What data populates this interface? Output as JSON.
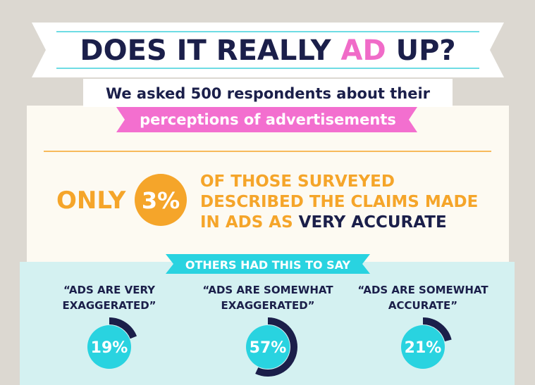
{
  "header": {
    "title_parts": [
      "DOES IT REALLY ",
      "AD",
      " UP?"
    ],
    "subtitle_line1": "We asked 500 respondents about their",
    "subtitle_line2": "perceptions of advertisements"
  },
  "highlight": {
    "prefix": "ONLY",
    "value_label": "3%",
    "text_line1": "OF THOSE SURVEYED",
    "text_line2": "DESCRIBED THE CLAIMS MADE",
    "text_line3_prefix": "IN ADS AS",
    "text_line3_emphasis": "VERY ACCURATE"
  },
  "others": {
    "heading": "OTHERS HAD THIS TO SAY",
    "items": [
      {
        "quote_line1": "“ADS ARE VERY",
        "quote_line2": "EXAGGERATED”",
        "value": 19,
        "value_label": "19%"
      },
      {
        "quote_line1": "“ADS ARE SOMEWHAT",
        "quote_line2": "EXAGGERATED”",
        "value": 57,
        "value_label": "57%"
      },
      {
        "quote_line1": "“ADS ARE SOMEWHAT",
        "quote_line2": "ACCURATE”",
        "value": 21,
        "value_label": "21%"
      }
    ]
  }
}
